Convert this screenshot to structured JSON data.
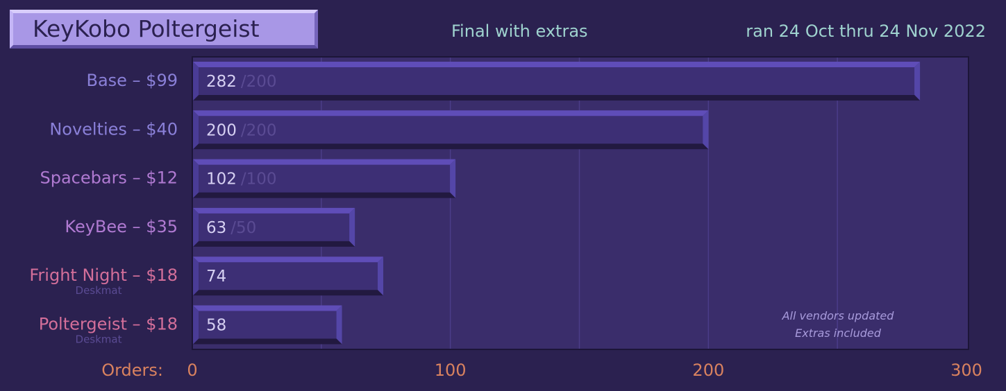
{
  "header": {
    "title": "KeyKobo Poltergeist",
    "subtitle": "Final with extras",
    "date_range": "ran 24 Oct thru 24 Nov 2022"
  },
  "chart_data": {
    "type": "bar",
    "orientation": "horizontal",
    "xlabel": "Orders:",
    "xlim": [
      0,
      300
    ],
    "xticks": [
      0,
      100,
      200,
      300
    ],
    "grid": true,
    "categories": [
      {
        "label": "Base – $99",
        "value": 282,
        "target": "/200",
        "sublabel": "",
        "color": "#8a80d8"
      },
      {
        "label": "Novelties – $40",
        "value": 200,
        "target": "/200",
        "sublabel": "",
        "color": "#8a80d8"
      },
      {
        "label": "Spacebars – $12",
        "value": 102,
        "target": "/100",
        "sublabel": "",
        "color": "#b07ad2"
      },
      {
        "label": "KeyBee – $35",
        "value": 63,
        "target": "/50",
        "sublabel": "",
        "color": "#b07ad2"
      },
      {
        "label": "Fright Night – $18",
        "value": 74,
        "target": "",
        "sublabel": "Deskmat",
        "color": "#d46f9a"
      },
      {
        "label": "Poltergeist – $18",
        "value": 58,
        "target": "",
        "sublabel": "Deskmat",
        "color": "#d46f9a"
      }
    ],
    "annotations": [
      "All vendors updated",
      "Extras included"
    ],
    "colors": {
      "background": "#2b2150",
      "plot_background": "#3a2d6b",
      "bar_fill": "#3d2f75",
      "bar_bevel_light": "#5f4db8",
      "bar_bevel_dark": "#221940",
      "value_text": "#d6d0f2",
      "target_text": "#5a4b93",
      "axis_text": "#d9825f",
      "annotation_text": "#a89bdc"
    }
  }
}
